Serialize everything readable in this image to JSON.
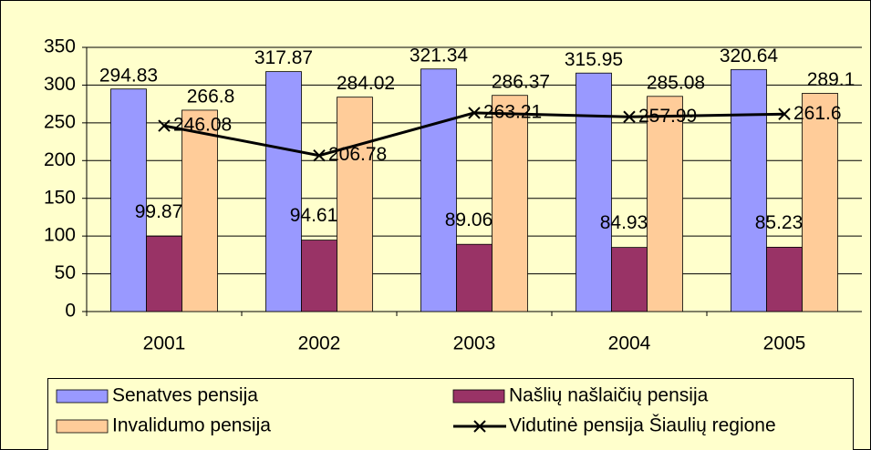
{
  "chart_data": {
    "type": "bar",
    "categories": [
      "2001",
      "2002",
      "2003",
      "2004",
      "2005"
    ],
    "series": [
      {
        "name": "Senatves pensija",
        "type": "bar",
        "color": "#9999ff",
        "values": [
          294.83,
          317.87,
          321.34,
          315.95,
          320.64
        ]
      },
      {
        "name": "Našlių našlaičių pensija",
        "type": "bar",
        "color": "#993366",
        "values": [
          99.87,
          94.61,
          89.06,
          84.93,
          85.23
        ]
      },
      {
        "name": "Invalidumo pensija",
        "type": "bar",
        "color": "#ffcc99",
        "values": [
          266.8,
          284.02,
          286.37,
          285.08,
          289.1
        ]
      },
      {
        "name": "Vidutinė pensija Šiaulių regione",
        "type": "line",
        "color": "#000000",
        "values": [
          246.08,
          206.78,
          263.21,
          257.99,
          261.6
        ]
      }
    ],
    "ylim": [
      0,
      350
    ],
    "yticks": [
      0,
      50,
      100,
      150,
      200,
      250,
      300,
      350
    ],
    "grid": true,
    "legend": "bottom"
  }
}
